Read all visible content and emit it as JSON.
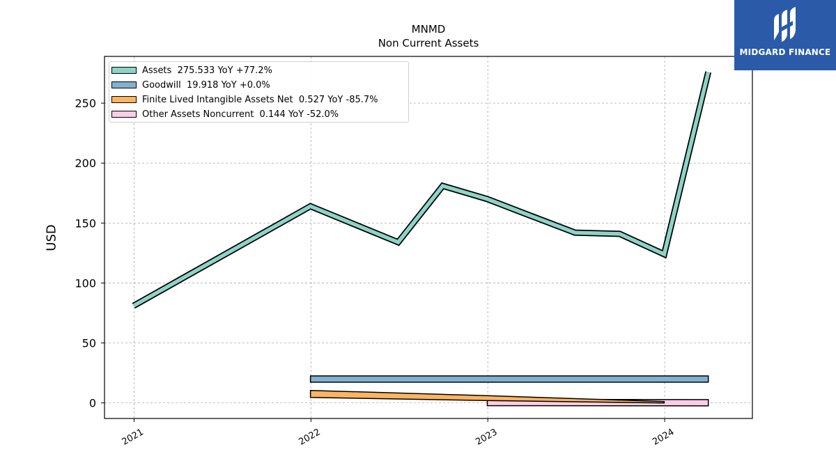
{
  "chart_data": {
    "type": "area",
    "title": "MNMD",
    "subtitle": "Non Current  Assets",
    "xlabel": "",
    "ylabel": "USD",
    "x_ticks": [
      "2021",
      "2022",
      "2023",
      "2024"
    ],
    "y_ticks": [
      "0",
      "50",
      "100",
      "150",
      "200",
      "250"
    ],
    "ylim": [
      -13,
      289
    ],
    "xlim": [
      "2020-11-01",
      "2024-06-30"
    ],
    "grid": true,
    "legend_position": "upper-left",
    "series": [
      {
        "name": "Assets  275.533 YoY +77.2%",
        "color": "#8dd3c7",
        "style": "thick-line",
        "points": [
          [
            "2020-12-31",
            81
          ],
          [
            "2021-12-31",
            164
          ],
          [
            "2022-06-30",
            134
          ],
          [
            "2022-09-30",
            181
          ],
          [
            "2022-12-31",
            170
          ],
          [
            "2023-03-31",
            156
          ],
          [
            "2023-06-30",
            142
          ],
          [
            "2023-09-30",
            141
          ],
          [
            "2023-12-31",
            124
          ],
          [
            "2024-03-31",
            276
          ]
        ]
      },
      {
        "name": "Goodwill  19.918 YoY +0.0%",
        "color": "#80b1d3",
        "style": "band",
        "points": [
          [
            "2021-12-31",
            19.918
          ],
          [
            "2024-03-31",
            19.918
          ]
        ]
      },
      {
        "name": "Finite Lived Intangible Assets Net  0.527 YoY -85.7%",
        "color": "#fdb462",
        "style": "wedge",
        "points": [
          [
            "2021-12-31",
            7.5
          ],
          [
            "2022-12-31",
            4
          ],
          [
            "2023-12-31",
            0.527
          ]
        ]
      },
      {
        "name": "Other Assets Noncurrent  0.144 YoY -52.0%",
        "color": "#fccde5",
        "style": "band",
        "points": [
          [
            "2022-12-31",
            0.3
          ],
          [
            "2024-03-31",
            0.144
          ]
        ]
      }
    ]
  },
  "logo": {
    "text": "MIDGARD FINANCE",
    "background": "#2b5aa8"
  }
}
